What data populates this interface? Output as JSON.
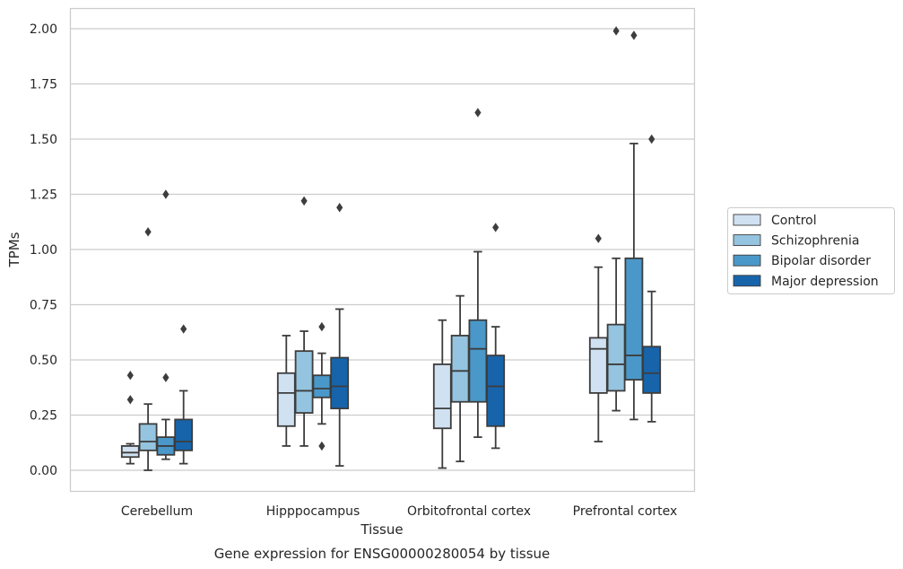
{
  "caption": "Gene expression for ENSG00000280054 by tissue",
  "chart_data": {
    "type": "box",
    "xlabel": "Tissue",
    "ylabel": "TPMs",
    "ylim": [
      -0.1,
      2.09
    ],
    "yticks": [
      0.0,
      0.25,
      0.5,
      0.75,
      1.0,
      1.25,
      1.5,
      1.75,
      2.0
    ],
    "ytick_labels": [
      "0.00",
      "0.25",
      "0.50",
      "0.75",
      "1.00",
      "1.25",
      "1.50",
      "1.75",
      "2.00"
    ],
    "grid": "horizontal",
    "legend_position": "right",
    "categories": [
      "Cerebellum",
      "Hipppocampus",
      "Orbitofrontal cortex",
      "Prefrontal cortex"
    ],
    "series": [
      {
        "name": "Control",
        "color": "#d0e1f2",
        "boxes": [
          {
            "whislo": 0.03,
            "q1": 0.06,
            "med": 0.08,
            "q3": 0.11,
            "whishi": 0.12,
            "fliers": [
              0.32,
              0.43
            ]
          },
          {
            "whislo": 0.11,
            "q1": 0.2,
            "med": 0.35,
            "q3": 0.44,
            "whishi": 0.61,
            "fliers": []
          },
          {
            "whislo": 0.01,
            "q1": 0.19,
            "med": 0.28,
            "q3": 0.48,
            "whishi": 0.68,
            "fliers": []
          },
          {
            "whislo": 0.13,
            "q1": 0.35,
            "med": 0.55,
            "q3": 0.6,
            "whishi": 0.92,
            "fliers": [
              1.05
            ]
          }
        ]
      },
      {
        "name": "Schizophrenia",
        "color": "#94c4df",
        "boxes": [
          {
            "whislo": 0.0,
            "q1": 0.09,
            "med": 0.13,
            "q3": 0.21,
            "whishi": 0.3,
            "fliers": [
              1.08
            ]
          },
          {
            "whislo": 0.11,
            "q1": 0.26,
            "med": 0.36,
            "q3": 0.54,
            "whishi": 0.63,
            "fliers": [
              1.22
            ]
          },
          {
            "whislo": 0.04,
            "q1": 0.31,
            "med": 0.45,
            "q3": 0.61,
            "whishi": 0.79,
            "fliers": []
          },
          {
            "whislo": 0.27,
            "q1": 0.36,
            "med": 0.48,
            "q3": 0.66,
            "whishi": 0.96,
            "fliers": [
              1.99
            ]
          }
        ]
      },
      {
        "name": "Bipolar disorder",
        "color": "#4a98c9",
        "boxes": [
          {
            "whislo": 0.05,
            "q1": 0.07,
            "med": 0.11,
            "q3": 0.15,
            "whishi": 0.23,
            "fliers": [
              0.42,
              1.25
            ]
          },
          {
            "whislo": 0.21,
            "q1": 0.33,
            "med": 0.37,
            "q3": 0.43,
            "whishi": 0.53,
            "fliers": [
              0.11,
              0.65
            ]
          },
          {
            "whislo": 0.15,
            "q1": 0.31,
            "med": 0.55,
            "q3": 0.68,
            "whishi": 0.99,
            "fliers": [
              1.62
            ]
          },
          {
            "whislo": 0.23,
            "q1": 0.41,
            "med": 0.52,
            "q3": 0.96,
            "whishi": 1.48,
            "fliers": [
              1.97
            ]
          }
        ]
      },
      {
        "name": "Major depression",
        "color": "#1764ab",
        "boxes": [
          {
            "whislo": 0.03,
            "q1": 0.09,
            "med": 0.13,
            "q3": 0.23,
            "whishi": 0.36,
            "fliers": [
              0.64
            ]
          },
          {
            "whislo": 0.02,
            "q1": 0.28,
            "med": 0.38,
            "q3": 0.51,
            "whishi": 0.73,
            "fliers": [
              1.19
            ]
          },
          {
            "whislo": 0.1,
            "q1": 0.2,
            "med": 0.38,
            "q3": 0.52,
            "whishi": 0.65,
            "fliers": [
              1.1
            ]
          },
          {
            "whislo": 0.22,
            "q1": 0.35,
            "med": 0.44,
            "q3": 0.56,
            "whishi": 0.81,
            "fliers": [
              1.5
            ]
          }
        ]
      }
    ]
  }
}
